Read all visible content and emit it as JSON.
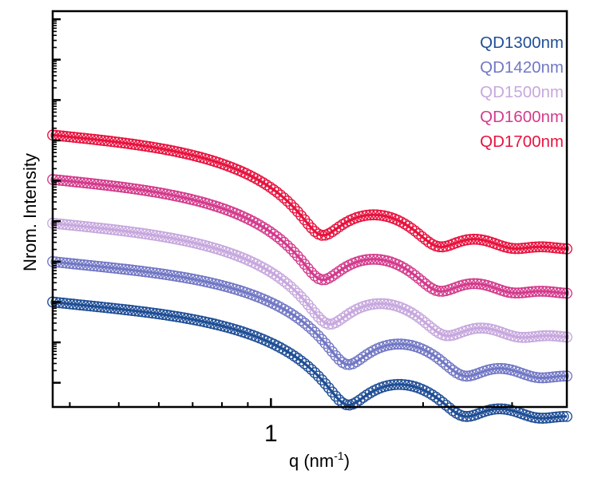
{
  "chart_data": {
    "type": "scatter",
    "title": "",
    "xlabel": "q (nm",
    "xlabel_sup": "-1",
    "xlabel_close": ")",
    "ylabel": "Nrom. Intensity",
    "xscale": "log",
    "xlim": [
      0.37,
      3.85
    ],
    "ylim": [
      -2.6,
      7.2
    ],
    "x_tick_labels": [
      {
        "value": 1,
        "label": "1"
      }
    ],
    "y_tick_labels_shown": false,
    "grid": false,
    "legend": "top-right",
    "markers": "open circles with solid fit lines",
    "series": [
      {
        "name": "QD1300nm",
        "color": "#1f4e96",
        "baseline": 0,
        "q1": 1.415
      },
      {
        "name": "QD1420nm",
        "color": "#7278c5",
        "baseline": 1.0,
        "q1": 1.415
      },
      {
        "name": "QD1500nm",
        "color": "#c7a8de",
        "baseline": 2.0,
        "q1": 1.3
      },
      {
        "name": "QD1600nm",
        "color": "#d43b8c",
        "baseline": 3.1,
        "q1": 1.26
      },
      {
        "name": "QD1700nm",
        "color": "#e8123e",
        "baseline": 4.2,
        "q1": 1.26
      }
    ]
  }
}
